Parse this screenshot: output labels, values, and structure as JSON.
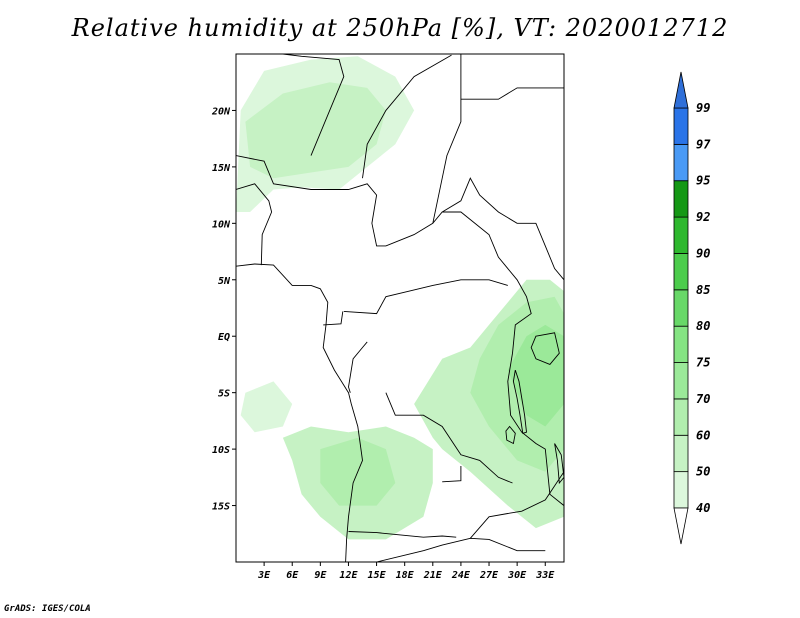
{
  "title": "Relative humidity at 250hPa [%], VT: 2020012712",
  "credit": "GrADS: IGES/COLA",
  "map": {
    "projection": "lat-lon",
    "lon_range": [
      0,
      35
    ],
    "lat_range": [
      -20,
      25
    ],
    "lat_ticks": [
      {
        "label": "20N",
        "value": 20
      },
      {
        "label": "15N",
        "value": 15
      },
      {
        "label": "10N",
        "value": 10
      },
      {
        "label": "5N",
        "value": 5
      },
      {
        "label": "EQ",
        "value": 0
      },
      {
        "label": "5S",
        "value": -5
      },
      {
        "label": "10S",
        "value": -10
      },
      {
        "label": "15S",
        "value": -15
      }
    ],
    "lon_ticks": [
      {
        "label": "3E",
        "value": 3
      },
      {
        "label": "6E",
        "value": 6
      },
      {
        "label": "9E",
        "value": 9
      },
      {
        "label": "12E",
        "value": 12
      },
      {
        "label": "15E",
        "value": 15
      },
      {
        "label": "18E",
        "value": 18
      },
      {
        "label": "21E",
        "value": 21
      },
      {
        "label": "24E",
        "value": 24
      },
      {
        "label": "27E",
        "value": 27
      },
      {
        "label": "30E",
        "value": 30
      },
      {
        "label": "33E",
        "value": 33
      }
    ]
  },
  "colorbar": {
    "levels": [
      "40",
      "50",
      "60",
      "70",
      "75",
      "80",
      "85",
      "90",
      "92",
      "95",
      "97",
      "99"
    ],
    "colors": [
      "#f0fcf0",
      "#dcf7dc",
      "#c6f2c4",
      "#b1eeae",
      "#9be999",
      "#85e483",
      "#68d868",
      "#4ccc4c",
      "#2eb82e",
      "#159815",
      "#4a9af5",
      "#2a74e8",
      "#1f5fd0"
    ],
    "over_color": "#2f6fd8",
    "under_color": "#ffffff"
  },
  "humidity_regions": [
    {
      "level": "50",
      "color_index": 1,
      "points": [
        [
          0.5,
          20
        ],
        [
          3,
          23.5
        ],
        [
          8,
          24.5
        ],
        [
          13,
          24.8
        ],
        [
          17,
          23
        ],
        [
          19,
          20
        ],
        [
          17,
          17
        ],
        [
          14,
          15
        ],
        [
          11,
          13
        ],
        [
          7,
          13.2
        ],
        [
          4,
          13
        ],
        [
          1.5,
          11
        ],
        [
          0,
          11
        ]
      ]
    },
    {
      "level": "60",
      "color_index": 2,
      "points": [
        [
          1,
          19
        ],
        [
          5,
          21.5
        ],
        [
          10,
          22.5
        ],
        [
          14,
          22
        ],
        [
          16,
          20
        ],
        [
          15,
          17
        ],
        [
          12,
          15
        ],
        [
          8,
          14.5
        ],
        [
          4,
          14
        ],
        [
          1.5,
          15
        ]
      ]
    },
    {
      "level": "60",
      "color_index": 2,
      "points": [
        [
          5,
          -9
        ],
        [
          8,
          -8
        ],
        [
          12,
          -8.5
        ],
        [
          16,
          -8
        ],
        [
          19,
          -9
        ],
        [
          21,
          -10
        ],
        [
          21,
          -13
        ],
        [
          20,
          -16
        ],
        [
          16,
          -18
        ],
        [
          12,
          -18
        ],
        [
          9,
          -16
        ],
        [
          7,
          -14
        ],
        [
          6,
          -11
        ]
      ]
    },
    {
      "level": "60",
      "color_index": 2,
      "points": [
        [
          19,
          -6
        ],
        [
          22,
          -2
        ],
        [
          25,
          -1
        ],
        [
          27,
          1
        ],
        [
          29,
          3
        ],
        [
          31,
          5
        ],
        [
          33.5,
          5
        ],
        [
          35,
          4
        ],
        [
          35,
          -16
        ],
        [
          32,
          -17
        ],
        [
          29,
          -15
        ],
        [
          25,
          -12
        ],
        [
          22,
          -10
        ],
        [
          21,
          -9
        ]
      ]
    },
    {
      "level": "70",
      "color_index": 3,
      "points": [
        [
          26,
          -2
        ],
        [
          28,
          1
        ],
        [
          31,
          3
        ],
        [
          34,
          3.5
        ],
        [
          35,
          2
        ],
        [
          35,
          -10
        ],
        [
          33,
          -12
        ],
        [
          30,
          -11
        ],
        [
          27,
          -8
        ],
        [
          25,
          -5
        ]
      ]
    },
    {
      "level": "75",
      "color_index": 4,
      "points": [
        [
          29,
          -3
        ],
        [
          31,
          0
        ],
        [
          33,
          1
        ],
        [
          35,
          0
        ],
        [
          35,
          -6
        ],
        [
          33,
          -8
        ],
        [
          31,
          -7
        ]
      ]
    },
    {
      "level": "70",
      "color_index": 3,
      "points": [
        [
          9,
          -10
        ],
        [
          13,
          -9
        ],
        [
          16,
          -10
        ],
        [
          17,
          -13
        ],
        [
          15,
          -15
        ],
        [
          11,
          -15
        ],
        [
          9,
          -13
        ]
      ]
    },
    {
      "level": "50",
      "color_index": 1,
      "points": [
        [
          1,
          -5
        ],
        [
          4,
          -4
        ],
        [
          6,
          -6
        ],
        [
          5,
          -8
        ],
        [
          2,
          -8.5
        ],
        [
          0.5,
          -7
        ]
      ]
    }
  ],
  "boundaries": [
    [
      [
        0,
        6.2
      ],
      [
        2,
        6.4
      ],
      [
        4,
        6.3
      ],
      [
        6,
        4.5
      ],
      [
        8,
        4.5
      ],
      [
        9,
        4.2
      ],
      [
        9.8,
        3.0
      ],
      [
        9.6,
        1.0
      ],
      [
        9.3,
        -1
      ],
      [
        10.5,
        -3
      ],
      [
        12,
        -5
      ],
      [
        12.3,
        -6
      ],
      [
        13,
        -8
      ],
      [
        13.5,
        -11
      ],
      [
        12.5,
        -13
      ],
      [
        12,
        -16
      ],
      [
        11.8,
        -18
      ],
      [
        11.7,
        -20
      ]
    ],
    [
      [
        0,
        13
      ],
      [
        2,
        13.5
      ],
      [
        3.5,
        12
      ],
      [
        3.8,
        11
      ],
      [
        2.8,
        9
      ],
      [
        2.7,
        6.3
      ]
    ],
    [
      [
        0,
        16
      ],
      [
        3,
        15.5
      ],
      [
        4,
        13.5
      ],
      [
        8,
        13
      ],
      [
        12,
        13
      ],
      [
        14,
        13.5
      ],
      [
        15,
        12.5
      ],
      [
        14.5,
        10
      ],
      [
        15,
        8
      ],
      [
        16,
        8
      ],
      [
        19,
        9
      ],
      [
        21,
        10
      ],
      [
        22,
        11
      ],
      [
        24,
        11
      ],
      [
        27,
        9
      ],
      [
        28,
        7
      ],
      [
        30,
        5
      ],
      [
        31,
        3.5
      ],
      [
        31.5,
        2
      ],
      [
        29.8,
        1
      ],
      [
        29.5,
        -1.5
      ],
      [
        29,
        -4
      ],
      [
        29.3,
        -7
      ],
      [
        30.5,
        -8.5
      ],
      [
        32,
        -9.5
      ],
      [
        33,
        -10
      ],
      [
        33.5,
        -14
      ],
      [
        35,
        -15
      ],
      [
        35,
        -17
      ]
    ],
    [
      [
        13.5,
        14
      ],
      [
        14,
        17
      ],
      [
        16,
        20
      ],
      [
        17,
        21
      ],
      [
        19,
        23
      ],
      [
        23,
        24.9
      ]
    ],
    [
      [
        8,
        16
      ],
      [
        10,
        20
      ],
      [
        11.5,
        23
      ],
      [
        11,
        24.5
      ],
      [
        7,
        24.8
      ],
      [
        5,
        25
      ]
    ],
    [
      [
        21,
        10
      ],
      [
        22,
        14
      ],
      [
        22.5,
        16
      ],
      [
        24,
        19
      ],
      [
        24,
        21
      ],
      [
        24,
        25
      ]
    ],
    [
      [
        24,
        21
      ],
      [
        28,
        21
      ],
      [
        30,
        22
      ],
      [
        35,
        22
      ]
    ],
    [
      [
        22,
        11
      ],
      [
        24,
        12
      ],
      [
        25,
        14
      ],
      [
        26,
        12.5
      ],
      [
        28,
        11
      ],
      [
        30,
        10
      ],
      [
        32,
        10
      ],
      [
        33,
        8
      ],
      [
        34,
        6
      ],
      [
        35,
        5
      ]
    ],
    [
      [
        11.5,
        2.2
      ],
      [
        15,
        2.0
      ],
      [
        16,
        3.5
      ],
      [
        18.5,
        4
      ],
      [
        21,
        4.5
      ],
      [
        24,
        5
      ],
      [
        27,
        5
      ],
      [
        29,
        4.5
      ]
    ],
    [
      [
        9.3,
        1.0
      ],
      [
        11.2,
        1.1
      ],
      [
        11.4,
        2.2
      ]
    ],
    [
      [
        14,
        -0.5
      ],
      [
        13.5,
        -1
      ],
      [
        12.5,
        -2
      ],
      [
        12,
        -4.5
      ],
      [
        12.2,
        -5
      ]
    ],
    [
      [
        16,
        -5
      ],
      [
        17,
        -7
      ],
      [
        20,
        -7
      ],
      [
        22,
        -8
      ],
      [
        24,
        -10.5
      ],
      [
        26,
        -11
      ],
      [
        28,
        -12.5
      ],
      [
        29.5,
        -13
      ]
    ],
    [
      [
        12,
        -17.3
      ],
      [
        15,
        -17.4
      ],
      [
        20,
        -17.8
      ],
      [
        22,
        -17.7
      ],
      [
        23.5,
        -17.8
      ]
    ],
    [
      [
        22,
        -12.9
      ],
      [
        24,
        -12.8
      ],
      [
        24,
        -11.5
      ]
    ],
    [
      [
        25,
        -17.9
      ],
      [
        27,
        -16
      ],
      [
        29,
        -15.7
      ],
      [
        30.5,
        -15.5
      ],
      [
        33,
        -14.5
      ],
      [
        35,
        -12
      ]
    ],
    [
      [
        15,
        -20
      ],
      [
        20,
        -19
      ],
      [
        22,
        -18.5
      ],
      [
        25,
        -17.9
      ],
      [
        27,
        -18
      ],
      [
        30,
        -19
      ],
      [
        33,
        -19
      ]
    ]
  ],
  "lakes": [
    [
      [
        29.8,
        -3
      ],
      [
        30.2,
        -4
      ],
      [
        30.5,
        -5.5
      ],
      [
        30.8,
        -7
      ],
      [
        31,
        -8.5
      ],
      [
        30.6,
        -8.6
      ],
      [
        30.3,
        -7
      ],
      [
        30,
        -5.5
      ],
      [
        29.6,
        -4
      ]
    ],
    [
      [
        32,
        0
      ],
      [
        34,
        0.3
      ],
      [
        34.5,
        -1.5
      ],
      [
        33.5,
        -2.5
      ],
      [
        32,
        -2
      ],
      [
        31.5,
        -1
      ]
    ],
    [
      [
        29.2,
        -8
      ],
      [
        29.8,
        -8.6
      ],
      [
        29.6,
        -9.5
      ],
      [
        28.9,
        -9.2
      ],
      [
        28.8,
        -8.4
      ]
    ],
    [
      [
        34,
        -9.5
      ],
      [
        34.7,
        -10.5
      ],
      [
        35,
        -12.5
      ],
      [
        34.5,
        -13
      ],
      [
        34.3,
        -11
      ]
    ]
  ]
}
